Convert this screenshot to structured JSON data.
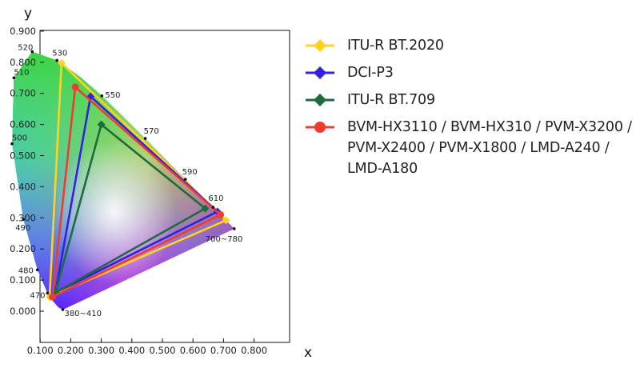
{
  "chart_data": {
    "type": "scatter",
    "title": "",
    "xlabel": "x",
    "ylabel": "y",
    "xlim": [
      0,
      0.8
    ],
    "ylim": [
      -0.05,
      0.9
    ],
    "x_ticks": [
      "0.100",
      "0.200",
      "0.300",
      "0.400",
      "0.500",
      "0.600",
      "0.700",
      "0.800"
    ],
    "y_ticks": [
      "0.000",
      "0.100",
      "0.200",
      "0.300",
      "0.400",
      "0.500",
      "0.600",
      "0.700",
      "0.800",
      "0.900"
    ],
    "grid": false,
    "legend_position": "right",
    "locus": [
      [
        0.174,
        0.005
      ],
      [
        0.16,
        0.012
      ],
      [
        0.144,
        0.03
      ],
      [
        0.124,
        0.058
      ],
      [
        0.091,
        0.133
      ],
      [
        0.045,
        0.295
      ],
      [
        0.008,
        0.538
      ],
      [
        0.014,
        0.75
      ],
      [
        0.074,
        0.834
      ],
      [
        0.155,
        0.806
      ],
      [
        0.23,
        0.754
      ],
      [
        0.302,
        0.692
      ],
      [
        0.373,
        0.624
      ],
      [
        0.444,
        0.555
      ],
      [
        0.512,
        0.487
      ],
      [
        0.575,
        0.424
      ],
      [
        0.627,
        0.373
      ],
      [
        0.666,
        0.334
      ],
      [
        0.692,
        0.308
      ],
      [
        0.735,
        0.265
      ]
    ],
    "locus_labels": [
      {
        "text": "520",
        "x": 0.074,
        "y": 0.834
      },
      {
        "text": "530",
        "x": 0.155,
        "y": 0.806
      },
      {
        "text": "510",
        "x": 0.014,
        "y": 0.75
      },
      {
        "text": "550",
        "x": 0.302,
        "y": 0.692
      },
      {
        "text": "570",
        "x": 0.444,
        "y": 0.555
      },
      {
        "text": "500",
        "x": 0.008,
        "y": 0.538
      },
      {
        "text": "590",
        "x": 0.575,
        "y": 0.424
      },
      {
        "text": "610",
        "x": 0.666,
        "y": 0.334
      },
      {
        "text": "490",
        "x": 0.045,
        "y": 0.295
      },
      {
        "text": "700~780",
        "x": 0.735,
        "y": 0.265
      },
      {
        "text": "480",
        "x": 0.091,
        "y": 0.133
      },
      {
        "text": "470",
        "x": 0.124,
        "y": 0.058
      },
      {
        "text": "380~410",
        "x": 0.174,
        "y": 0.005
      }
    ],
    "series": [
      {
        "name": "ITU-R BT.2020",
        "color": "#ffd21f",
        "marker": "diamond",
        "points": [
          [
            0.708,
            0.292
          ],
          [
            0.17,
            0.797
          ],
          [
            0.131,
            0.046
          ]
        ]
      },
      {
        "name": "DCI-P3",
        "color": "#3322dd",
        "marker": "diamond",
        "points": [
          [
            0.68,
            0.32
          ],
          [
            0.265,
            0.69
          ],
          [
            0.15,
            0.06
          ]
        ]
      },
      {
        "name": "ITU-R BT.709",
        "color": "#1e6b3c",
        "marker": "diamond",
        "points": [
          [
            0.64,
            0.33
          ],
          [
            0.3,
            0.6
          ],
          [
            0.15,
            0.06
          ]
        ]
      },
      {
        "name": "BVM-HX3110 / BVM-HX310 / PVM-X3200 / PVM-X2400 / PVM-X1800 / LMD-A240 / LMD-A180",
        "color": "#ee3d2e",
        "marker": "circle",
        "points": [
          [
            0.69,
            0.31
          ],
          [
            0.215,
            0.72
          ],
          [
            0.14,
            0.046
          ]
        ]
      }
    ]
  },
  "legend": {
    "items": [
      {
        "label": "ITU-R BT.2020",
        "color": "#ffd21f",
        "marker": "diamond"
      },
      {
        "label": "DCI-P3",
        "color": "#3322dd",
        "marker": "diamond"
      },
      {
        "label": "ITU-R BT.709",
        "color": "#1e6b3c",
        "marker": "diamond"
      },
      {
        "label": "BVM-HX3110 / BVM-HX310 / PVM-X3200 / PVM-X2400 / PVM-X1800 / LMD-A240 / LMD-A180",
        "color": "#ee3d2e",
        "marker": "circle"
      }
    ]
  }
}
